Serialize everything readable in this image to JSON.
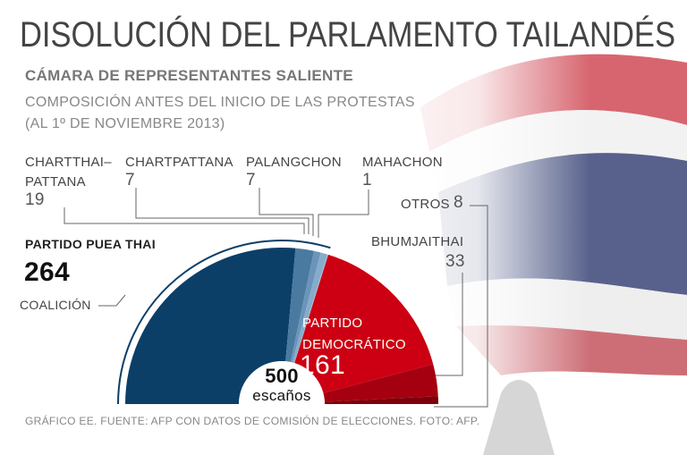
{
  "chart_data": {
    "type": "semicircle",
    "title": "DISOLUCIÓN DEL PARLAMENTO TAILANDÉS",
    "subtitle": "CÁMARA DE REPRESENTANTES SALIENTE",
    "notes": [
      "COMPOSICIÓN ANTES DEL INICIO DE LAS PROTESTAS",
      "(AL 1º DE NOVIEMBRE 2013)"
    ],
    "categories": [
      "PARTIDO PUEA THAI",
      "CHARTTHAI–\nPATTANA",
      "CHARTPATTANA",
      "PALANGCHON",
      "MAHACHON",
      "PARTIDO\nDEMOCRÁTICO",
      "BHUMJAITHAI",
      "OTROS"
    ],
    "values": [
      264,
      19,
      7,
      7,
      1,
      161,
      33,
      8
    ],
    "colors": [
      "#0b3f68",
      "#4a7aa0",
      "#6a95ba",
      "#86abcb",
      "#a4c1da",
      "#cc0012",
      "#a5000f",
      "#7c000c"
    ],
    "coalition_label": "COALICIÓN",
    "total": 500,
    "total_label": "escaños",
    "source": "GRÁFICO EE. FUENTE: AFP CON DATOS DE COMISIÓN DE ELECCIONES. FOTO: AFP."
  }
}
